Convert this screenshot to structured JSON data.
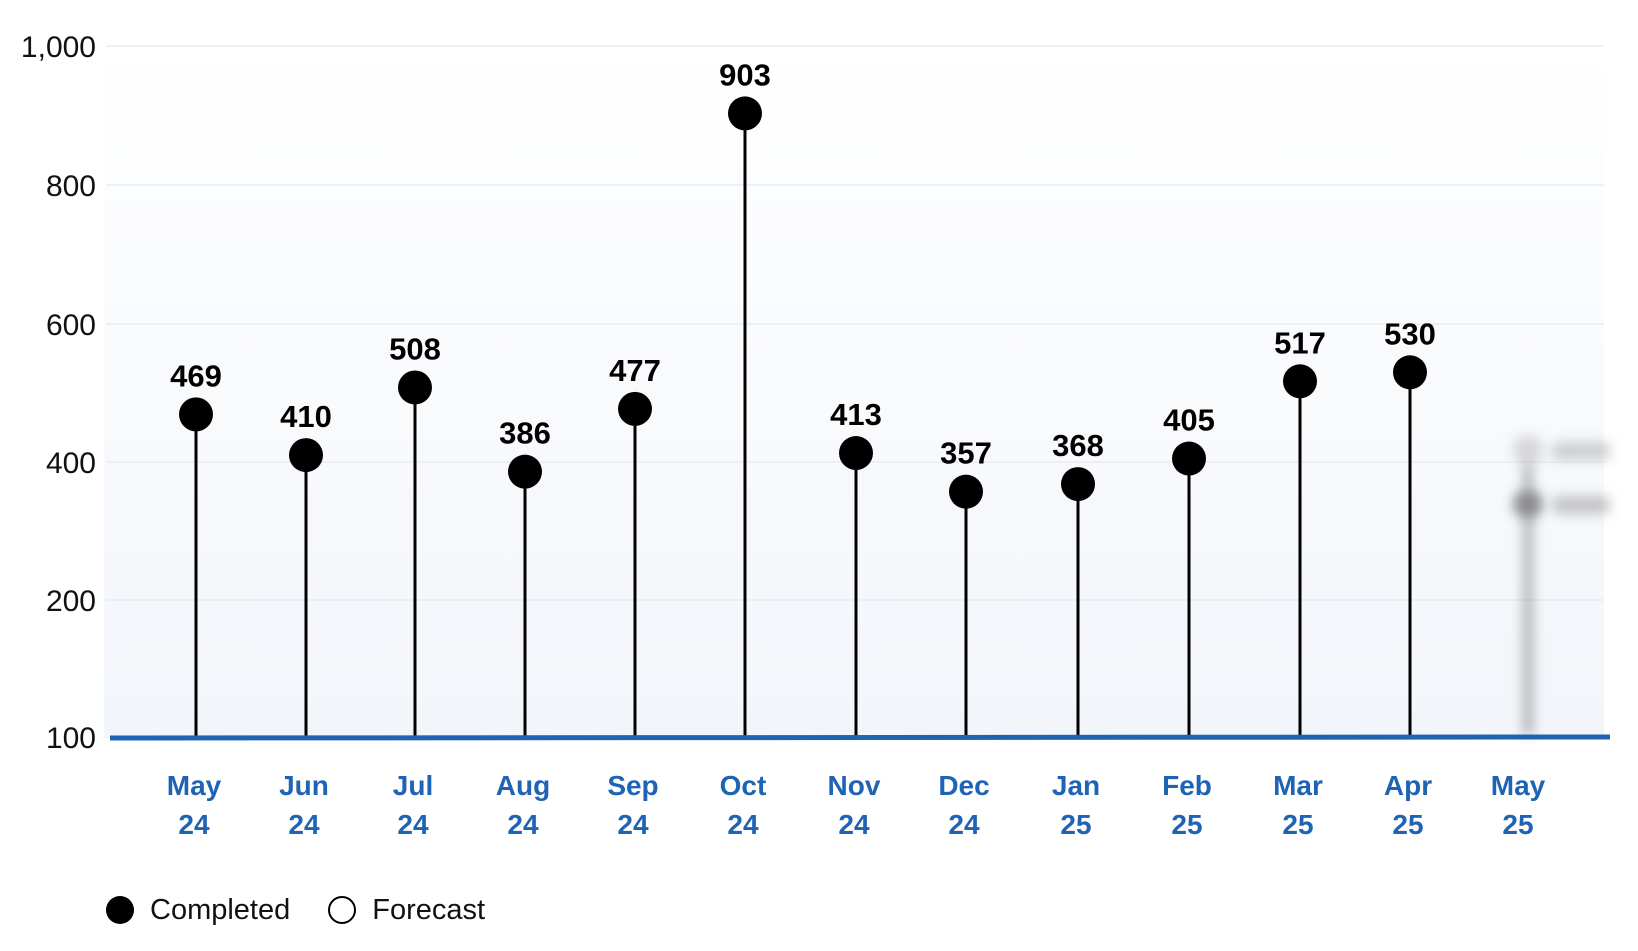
{
  "chart_data": {
    "type": "lollipop",
    "y_ticks": [
      "1,000",
      "800",
      "600",
      "400",
      "200",
      "100"
    ],
    "categories": [
      [
        "May",
        "24"
      ],
      [
        "Jun",
        "24"
      ],
      [
        "Jul",
        "24"
      ],
      [
        "Aug",
        "24"
      ],
      [
        "Sep",
        "24"
      ],
      [
        "Oct",
        "24"
      ],
      [
        "Nov",
        "24"
      ],
      [
        "Dec",
        "24"
      ],
      [
        "Jan",
        "25"
      ],
      [
        "Feb",
        "25"
      ],
      [
        "Mar",
        "25"
      ],
      [
        "Apr",
        "25"
      ],
      [
        "May",
        "25"
      ]
    ],
    "series": [
      {
        "name": "Completed",
        "values": [
          469,
          410,
          508,
          386,
          477,
          903,
          413,
          357,
          368,
          405,
          517,
          530,
          null
        ]
      }
    ],
    "blurred_final_point": "obscured",
    "grid": true,
    "legend_position": "bottom-left",
    "colors": {
      "axis_line": "#1f63b4",
      "tick_label": "#1f63b4",
      "marker": "#000000",
      "grid": "#e8ecf2",
      "background_top": "#ffffff",
      "background_bottom": "#f2f5fa"
    }
  },
  "legend": {
    "completed_label": "Completed",
    "forecast_label": "Forecast"
  }
}
